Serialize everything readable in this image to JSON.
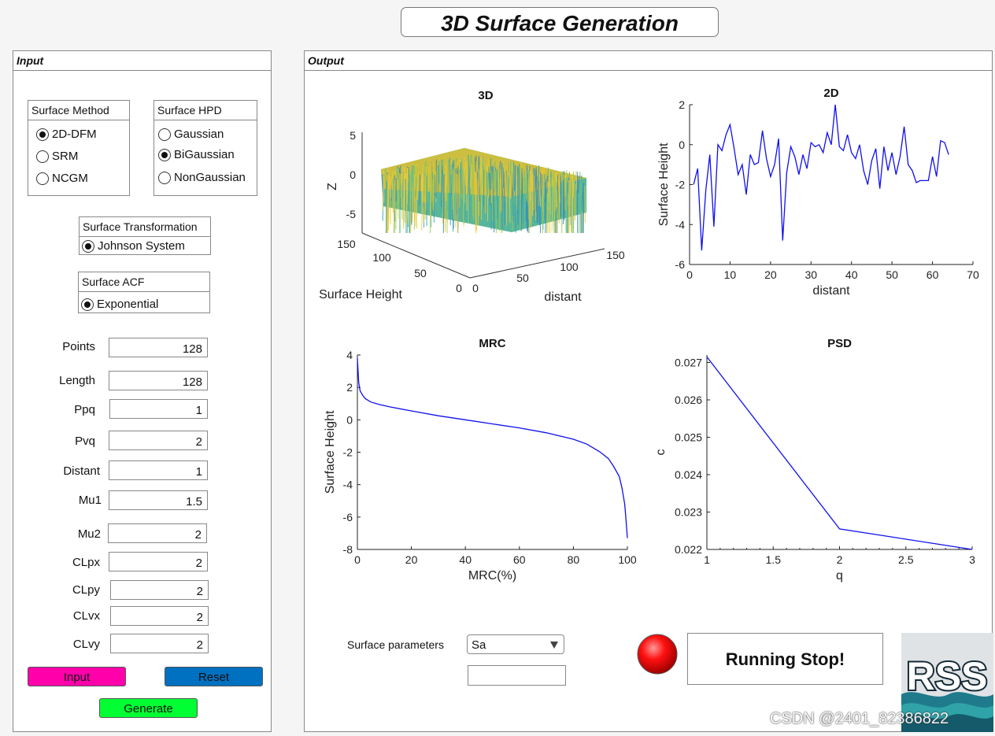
{
  "title": "3D Surface Generation",
  "input_panel": {
    "title": "Input",
    "surface_method": {
      "title": "Surface Method",
      "options": [
        "2D-DFM",
        "SRM",
        "NCGM"
      ],
      "selected": "2D-DFM"
    },
    "surface_hpd": {
      "title": "Surface HPD",
      "options": [
        "Gaussian",
        "BiGaussian",
        "NonGaussian"
      ],
      "selected": "BiGaussian"
    },
    "surface_transformation": {
      "title": "Surface Transformation",
      "options": [
        "Johnson System"
      ],
      "selected": "Johnson System"
    },
    "surface_acf": {
      "title": "Surface ACF",
      "options": [
        "Exponential"
      ],
      "selected": "Exponential"
    },
    "params": [
      {
        "label": "Points",
        "value": "128"
      },
      {
        "label": "Length",
        "value": "128"
      },
      {
        "label": "Ppq",
        "value": "1"
      },
      {
        "label": "Pvq",
        "value": "2"
      },
      {
        "label": "Distant",
        "value": "1"
      },
      {
        "label": "Mu1",
        "value": "1.5"
      },
      {
        "label": "Mu2",
        "value": "2"
      },
      {
        "label": "CLpx",
        "value": "2"
      },
      {
        "label": "CLpy",
        "value": "2"
      },
      {
        "label": "CLvx",
        "value": "2"
      },
      {
        "label": "CLvy",
        "value": "2"
      }
    ],
    "buttons": {
      "input": "Input",
      "reset": "Reset",
      "generate": "Generate"
    },
    "colors": {
      "input": "#ff00aa",
      "reset": "#0070c0",
      "generate": "#00ff33"
    }
  },
  "output_panel": {
    "title": "Output",
    "surface_parameters_label": "Surface parameters",
    "surface_parameters_selected": "Sa",
    "surface_parameters_value": "",
    "status_text": "Running Stop!",
    "status_color": "#e00000",
    "logo_text": "RSS"
  },
  "watermark": "CSDN @2401_82386822",
  "chart_data": [
    {
      "type": "surface3d",
      "title": "3D",
      "xlabel": "distant",
      "ylabel": "Surface Height",
      "zlabel": "Z",
      "x_ticks": [
        "0",
        "50",
        "100",
        "150"
      ],
      "y_ticks": [
        "0",
        "50",
        "100",
        "150"
      ],
      "z_ticks": [
        "5",
        "0",
        "-5"
      ],
      "zlim": [
        -7,
        5
      ]
    },
    {
      "type": "line",
      "title": "2D",
      "xlabel": "distant",
      "ylabel": "Surface Height",
      "xlim": [
        0,
        70
      ],
      "ylim": [
        -6,
        2
      ],
      "x_ticks": [
        "0",
        "10",
        "20",
        "30",
        "40",
        "50",
        "60",
        "70"
      ],
      "y_ticks": [
        "2",
        "0",
        "-2",
        "-4",
        "-6"
      ],
      "x": [
        1,
        2,
        3,
        4,
        5,
        6,
        7,
        8,
        9,
        10,
        11,
        12,
        13,
        14,
        15,
        16,
        17,
        18,
        19,
        20,
        21,
        22,
        23,
        24,
        25,
        26,
        27,
        28,
        29,
        30,
        31,
        32,
        33,
        34,
        35,
        36,
        37,
        38,
        39,
        40,
        41,
        42,
        43,
        44,
        45,
        46,
        47,
        48,
        49,
        50,
        51,
        52,
        53,
        54,
        55,
        56,
        57,
        58,
        59,
        60,
        61,
        62,
        63,
        64
      ],
      "y": [
        -2.0,
        -1.2,
        -5.3,
        -2.3,
        -0.5,
        -4.1,
        0.0,
        -0.3,
        0.5,
        1.0,
        -0.2,
        -1.5,
        -1.0,
        -2.5,
        -0.5,
        -1.0,
        -0.9,
        0.7,
        -0.7,
        -1.6,
        -1.0,
        0.3,
        -4.8,
        -1.4,
        -0.1,
        -0.6,
        -1.5,
        -0.5,
        -1.2,
        0.1,
        -0.1,
        0.0,
        -0.4,
        0.6,
        0.0,
        2.0,
        -0.1,
        -0.3,
        0.5,
        -0.4,
        -0.7,
        0.0,
        -1.3,
        -2.0,
        -0.8,
        -0.2,
        -2.2,
        -0.1,
        -1.3,
        -0.4,
        -1.5,
        -0.6,
        0.9,
        -1.0,
        -1.3,
        -1.9,
        -1.8,
        -1.8,
        -1.8,
        -0.6,
        -1.6,
        0.2,
        0.1,
        -0.5
      ]
    },
    {
      "type": "line",
      "title": "MRC",
      "xlabel": "MRC(%)",
      "ylabel": "Surface Height",
      "xlim": [
        0,
        100
      ],
      "ylim": [
        -8,
        4
      ],
      "x_ticks": [
        "0",
        "20",
        "40",
        "60",
        "80",
        "100"
      ],
      "y_ticks": [
        "4",
        "2",
        "0",
        "-2",
        "-4",
        "-6",
        "-8"
      ],
      "x": [
        0,
        0.5,
        1,
        2,
        3,
        5,
        8,
        12,
        20,
        30,
        40,
        50,
        60,
        70,
        80,
        85,
        90,
        93,
        95,
        97,
        98,
        99,
        99.5,
        100
      ],
      "y": [
        3.8,
        2.3,
        1.8,
        1.5,
        1.3,
        1.1,
        0.95,
        0.8,
        0.55,
        0.25,
        0.0,
        -0.25,
        -0.5,
        -0.8,
        -1.2,
        -1.5,
        -2.0,
        -2.4,
        -2.9,
        -3.5,
        -4.2,
        -5.2,
        -6.2,
        -7.3
      ]
    },
    {
      "type": "line",
      "title": "PSD",
      "xlabel": "q",
      "ylabel": "c",
      "xlim": [
        1,
        3
      ],
      "ylim": [
        0.022,
        0.0272
      ],
      "x_ticks": [
        "1",
        "1.5",
        "2",
        "2.5",
        "3"
      ],
      "y_ticks": [
        "0.027",
        "0.026",
        "0.025",
        "0.024",
        "0.023",
        "0.022"
      ],
      "x": [
        1,
        2,
        3
      ],
      "y": [
        0.02715,
        0.02255,
        0.022
      ]
    }
  ]
}
